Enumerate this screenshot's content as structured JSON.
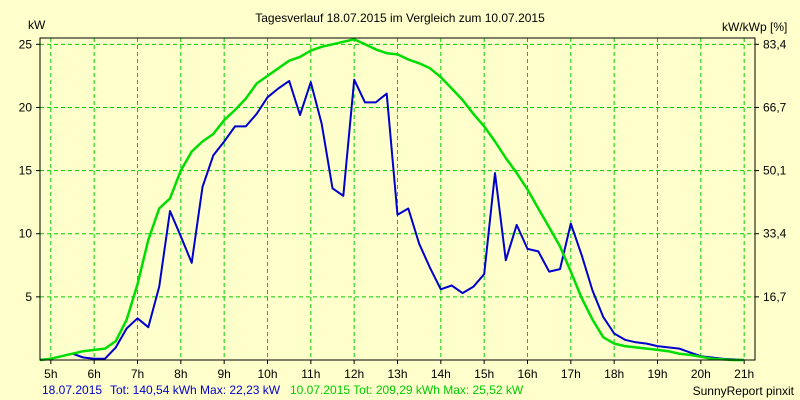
{
  "chart_data": {
    "type": "line",
    "title": "Tagesverlauf 18.07.2015 im Vergleich zum 10.07.2015",
    "ylabel_left": "kW",
    "ylabel_right": "kW/kWp [%]",
    "x_ticks": [
      "5h",
      "6h",
      "7h",
      "8h",
      "9h",
      "10h",
      "11h",
      "12h",
      "13h",
      "14h",
      "15h",
      "16h",
      "17h",
      "18h",
      "19h",
      "20h",
      "21h"
    ],
    "y_ticks_left": [
      "5",
      "10",
      "15",
      "20",
      "25"
    ],
    "y_ticks_right": [
      "16,7",
      "33,4",
      "50,1",
      "66,7",
      "83,4"
    ],
    "xlim": [
      4.75,
      21.25
    ],
    "ylim": [
      0,
      25.5
    ],
    "grid": true,
    "colors": {
      "plot_bg": "#ffffcc",
      "grid": "#00cc00",
      "series1": "#0000cc",
      "series2": "#00dd00"
    },
    "series": [
      {
        "name": "18.07.2015",
        "color": "#0000cc",
        "x": [
          4.75,
          5.0,
          5.25,
          5.5,
          5.75,
          6.0,
          6.25,
          6.5,
          6.75,
          7.0,
          7.25,
          7.5,
          7.75,
          8.0,
          8.25,
          8.5,
          8.75,
          9.0,
          9.25,
          9.5,
          9.75,
          10.0,
          10.25,
          10.5,
          10.75,
          11.0,
          11.25,
          11.5,
          11.75,
          12.0,
          12.25,
          12.5,
          12.75,
          13.0,
          13.25,
          13.5,
          13.75,
          14.0,
          14.25,
          14.5,
          14.75,
          15.0,
          15.25,
          15.5,
          15.75,
          16.0,
          16.25,
          16.5,
          16.75,
          17.0,
          17.25,
          17.5,
          17.75,
          18.0,
          18.25,
          18.5,
          18.75,
          19.0,
          19.25,
          19.5,
          19.75,
          20.0,
          20.25,
          20.5,
          20.75,
          21.0
        ],
        "values": [
          0,
          0.1,
          0.3,
          0.5,
          0.2,
          0.1,
          0.1,
          1.0,
          2.5,
          3.3,
          2.6,
          5.8,
          11.8,
          9.8,
          7.7,
          13.7,
          16.2,
          17.3,
          18.5,
          18.5,
          19.5,
          20.8,
          21.5,
          22.1,
          19.4,
          22.0,
          18.7,
          13.6,
          13.0,
          22.2,
          20.4,
          20.4,
          21.1,
          11.5,
          12.0,
          9.2,
          7.3,
          5.6,
          5.9,
          5.3,
          5.8,
          6.8,
          14.8,
          7.9,
          10.7,
          8.8,
          8.6,
          7.0,
          7.2,
          10.8,
          8.3,
          5.5,
          3.4,
          2.1,
          1.6,
          1.4,
          1.3,
          1.1,
          1.0,
          0.9,
          0.6,
          0.3,
          0.2,
          0.1,
          0.05,
          0
        ]
      },
      {
        "name": "10.07.2015",
        "color": "#00dd00",
        "x": [
          4.75,
          5.0,
          5.25,
          5.5,
          5.75,
          6.0,
          6.25,
          6.5,
          6.75,
          7.0,
          7.25,
          7.5,
          7.75,
          8.0,
          8.25,
          8.5,
          8.75,
          9.0,
          9.25,
          9.5,
          9.75,
          10.0,
          10.25,
          10.5,
          10.75,
          11.0,
          11.25,
          11.5,
          11.75,
          12.0,
          12.25,
          12.5,
          12.75,
          13.0,
          13.25,
          13.5,
          13.75,
          14.0,
          14.25,
          14.5,
          14.75,
          15.0,
          15.25,
          15.5,
          15.75,
          16.0,
          16.25,
          16.5,
          16.75,
          17.0,
          17.25,
          17.5,
          17.75,
          18.0,
          18.25,
          18.5,
          18.75,
          19.0,
          19.25,
          19.5,
          19.75,
          20.0,
          20.25,
          20.5,
          20.75,
          21.0
        ],
        "values": [
          0,
          0.1,
          0.3,
          0.5,
          0.7,
          0.8,
          0.9,
          1.5,
          3.2,
          6.0,
          9.5,
          12.0,
          12.8,
          15.0,
          16.5,
          17.3,
          17.9,
          19.0,
          19.8,
          20.7,
          21.9,
          22.5,
          23.1,
          23.7,
          24.0,
          24.5,
          24.8,
          25.0,
          25.2,
          25.4,
          25.0,
          24.6,
          24.3,
          24.2,
          23.8,
          23.5,
          23.1,
          22.4,
          21.5,
          20.6,
          19.5,
          18.5,
          17.3,
          16.0,
          14.8,
          13.5,
          12.0,
          10.5,
          9.0,
          7.0,
          4.9,
          3.2,
          1.8,
          1.3,
          1.1,
          1.0,
          0.9,
          0.8,
          0.7,
          0.5,
          0.4,
          0.25,
          0.1,
          0.05,
          0,
          0
        ]
      }
    ],
    "legend": [
      {
        "label": "18.07.2015",
        "color": "#0000cc"
      },
      {
        "label": "Tot: 140,54 kWh Max: 22,23 kW",
        "color": "#0000cc"
      },
      {
        "label": "10.07.2015 Tot: 209,29 kWh Max: 25,52 kW",
        "color": "#00dd00"
      }
    ],
    "footer": "SunnyReport pinxit"
  }
}
